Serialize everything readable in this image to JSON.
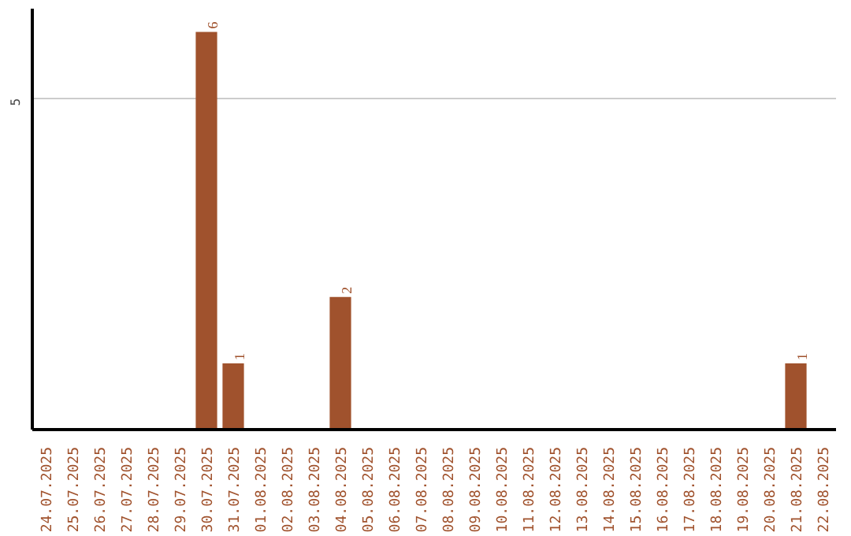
{
  "chart_data": {
    "type": "bar",
    "categories": [
      "24.07.2025",
      "25.07.2025",
      "26.07.2025",
      "27.07.2025",
      "28.07.2025",
      "29.07.2025",
      "30.07.2025",
      "31.07.2025",
      "01.08.2025",
      "02.08.2025",
      "03.08.2025",
      "04.08.2025",
      "05.08.2025",
      "06.08.2025",
      "07.08.2025",
      "08.08.2025",
      "09.08.2025",
      "10.08.2025",
      "11.08.2025",
      "12.08.2025",
      "13.08.2025",
      "14.08.2025",
      "15.08.2025",
      "16.08.2025",
      "17.08.2025",
      "18.08.2025",
      "19.08.2025",
      "20.08.2025",
      "21.08.2025",
      "22.08.2025"
    ],
    "values": [
      0,
      0,
      0,
      0,
      0,
      0,
      6,
      1,
      0,
      0,
      0,
      2,
      0,
      0,
      0,
      0,
      0,
      0,
      0,
      0,
      0,
      0,
      0,
      0,
      0,
      0,
      0,
      0,
      1,
      0
    ],
    "value_labels": [
      null,
      null,
      null,
      null,
      null,
      null,
      "6",
      "1",
      null,
      null,
      null,
      "2",
      null,
      null,
      null,
      null,
      null,
      null,
      null,
      null,
      null,
      null,
      null,
      null,
      null,
      null,
      null,
      null,
      "1",
      null
    ],
    "color": "#a0522d",
    "ylim": [
      0,
      6.35
    ],
    "yticks": [
      5
    ],
    "grid": "y"
  }
}
